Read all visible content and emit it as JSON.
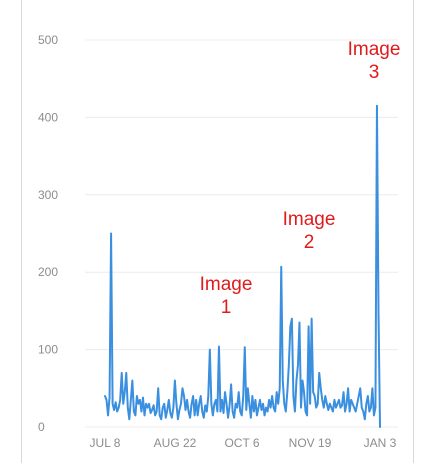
{
  "chart_data": {
    "type": "line",
    "title": "",
    "xlabel": "",
    "ylabel": "",
    "ylim": [
      0,
      500
    ],
    "yticks": [
      0,
      100,
      200,
      300,
      400,
      500
    ],
    "xticks": [
      "JUL 8",
      "AUG 22",
      "OCT 6",
      "NOV 19",
      "JAN 3"
    ],
    "grid": true,
    "color": "#3a8fdf",
    "annotations": [
      {
        "lines": [
          "Image",
          "1"
        ],
        "x": 104,
        "y": 104
      },
      {
        "lines": [
          "Image",
          "2"
        ],
        "x": 126,
        "y": 207
      },
      {
        "lines": [
          "Image",
          "3"
        ],
        "x": 177,
        "y": 415
      }
    ],
    "series": [
      {
        "x": [
          0,
          1,
          2,
          3,
          4,
          5,
          6,
          7,
          8,
          9,
          10,
          11,
          12,
          13,
          14,
          15,
          16,
          17,
          18,
          19,
          20,
          21,
          22,
          23,
          24,
          25,
          26,
          27,
          28,
          29,
          30,
          31,
          32,
          33,
          34,
          35,
          36,
          37,
          38,
          39,
          40,
          41,
          42,
          43,
          44,
          45,
          46,
          47,
          48,
          49,
          50,
          51,
          52,
          53,
          54,
          55,
          56,
          57,
          58,
          59,
          60,
          61,
          62,
          63,
          64,
          65,
          66,
          67,
          68,
          69,
          70,
          71,
          72,
          73,
          74,
          75,
          76,
          77,
          78,
          79,
          80,
          81,
          82,
          83,
          84,
          85,
          86,
          87,
          88,
          89,
          90,
          91,
          92,
          93,
          94,
          95,
          96,
          97,
          98,
          99,
          100,
          101,
          102,
          103,
          104,
          105,
          106,
          107,
          108,
          109,
          110,
          111,
          112,
          113,
          114,
          115,
          116,
          117,
          118,
          119,
          120,
          121,
          122,
          123,
          124,
          125,
          126,
          127,
          128,
          129,
          130,
          131,
          132,
          133,
          134,
          135,
          136,
          137,
          138,
          139,
          140,
          141,
          142,
          143,
          144,
          145,
          146,
          147,
          148,
          149,
          150,
          151,
          152,
          153,
          154,
          155,
          156,
          157,
          158,
          159,
          160,
          161,
          162,
          163,
          164,
          165,
          166,
          167,
          168,
          169,
          170,
          171,
          172,
          173,
          174,
          175,
          176,
          177,
          178,
          179,
          180,
          181
        ],
        "y": [
          40,
          35,
          15,
          38,
          250,
          30,
          22,
          32,
          20,
          25,
          35,
          70,
          30,
          45,
          70,
          25,
          10,
          35,
          60,
          20,
          15,
          40,
          30,
          35,
          20,
          38,
          15,
          30,
          25,
          30,
          18,
          22,
          28,
          15,
          20,
          50,
          15,
          10,
          25,
          30,
          12,
          22,
          35,
          18,
          12,
          25,
          60,
          30,
          10,
          22,
          30,
          50,
          40,
          22,
          35,
          20,
          12,
          30,
          40,
          15,
          35,
          15,
          30,
          40,
          20,
          12,
          28,
          20,
          40,
          100,
          30,
          15,
          30,
          35,
          20,
          104,
          20,
          35,
          18,
          45,
          30,
          12,
          28,
          55,
          20,
          12,
          30,
          25,
          45,
          20,
          15,
          40,
          103,
          22,
          50,
          30,
          12,
          40,
          20,
          35,
          15,
          25,
          35,
          22,
          30,
          15,
          25,
          20,
          35,
          25,
          40,
          25,
          20,
          45,
          30,
          50,
          207,
          60,
          30,
          20,
          45,
          80,
          130,
          140,
          40,
          20,
          60,
          80,
          135,
          25,
          60,
          45,
          20,
          15,
          130,
          30,
          140,
          45,
          40,
          25,
          30,
          70,
          50,
          35,
          25,
          40,
          30,
          22,
          30,
          25,
          20,
          35,
          25,
          30,
          35,
          25,
          28,
          45,
          20,
          30,
          50,
          20,
          35,
          30,
          25,
          20,
          30,
          40,
          50,
          25,
          20,
          10,
          30,
          40,
          20,
          25,
          50,
          15,
          25,
          415,
          150,
          0
        ]
      }
    ]
  }
}
